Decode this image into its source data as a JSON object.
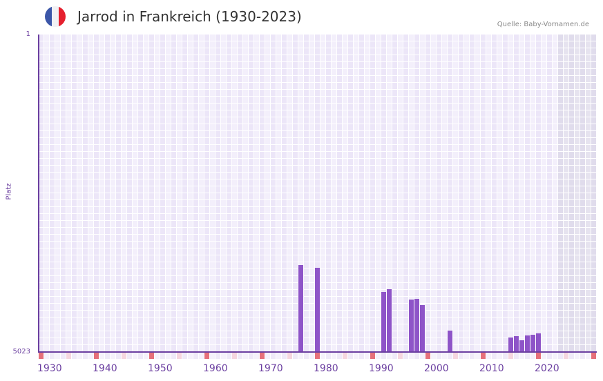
{
  "header": {
    "title": "Jarrod in Frankreich (1930-2023)",
    "source": "Quelle: Baby-Vornamen.de",
    "flag": {
      "icon": "france-flag-icon",
      "colors": [
        "#3b56a8",
        "#f1f1f4",
        "#e5202e"
      ]
    }
  },
  "colors": {
    "bar": "#8e54c8",
    "axis": "#6b3fa0",
    "grid_a": "#ece6f8",
    "grid_b": "#f3effb",
    "future_a": "#e0dcec",
    "future_b": "#e6e3ef",
    "decade_mark": "#e5707a",
    "half_decade_mark": "#f5d6df",
    "year_mark": "#efeaf8"
  },
  "chart_data": {
    "type": "bar",
    "title": "Jarrod in Frankreich (1930-2023)",
    "xlabel": "",
    "ylabel": "Platz",
    "y_inverted": true,
    "ylim": [
      1,
      5023
    ],
    "xlim": [
      1930,
      2030
    ],
    "x_tick_labels": [
      "1930",
      "1940",
      "1950",
      "1960",
      "1970",
      "1980",
      "1990",
      "2000",
      "2010",
      "2020"
    ],
    "y_tick_labels": [
      "1",
      "5023"
    ],
    "future_shaded_from": 2024,
    "grid": true,
    "legend": null,
    "categories": [
      1977,
      1980,
      1992,
      1993,
      1997,
      1998,
      1999,
      2004,
      2015,
      2016,
      2017,
      2018,
      2019,
      2020
    ],
    "values": [
      3648,
      3691,
      4073,
      4029,
      4193,
      4182,
      4281,
      4685,
      4794,
      4772,
      4838,
      4761,
      4750,
      4728
    ]
  },
  "axis": {
    "ylabel": "Platz",
    "ytop": "1",
    "ybottom": "5023",
    "xticks": [
      "1930",
      "1940",
      "1950",
      "1960",
      "1970",
      "1980",
      "1990",
      "2000",
      "2010",
      "2020"
    ]
  }
}
